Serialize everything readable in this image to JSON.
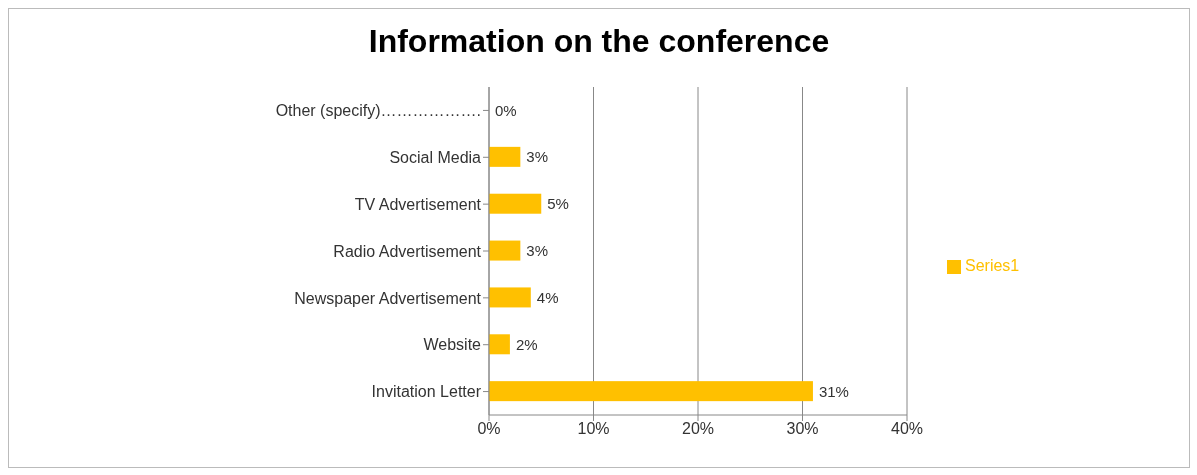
{
  "chart_data": {
    "type": "bar",
    "orientation": "horizontal",
    "title": "Information on the conference",
    "categories": [
      "Other (specify)……………….",
      "Social Media",
      "TV Advertisement",
      "Radio Advertisement",
      "Newspaper Advertisement",
      "Website",
      "Invitation Letter"
    ],
    "series": [
      {
        "name": "Series1",
        "color": "#ffc000",
        "values": [
          0,
          3,
          5,
          3,
          4,
          2,
          31
        ],
        "value_labels": [
          "0%",
          "3%",
          "5%",
          "3%",
          "4%",
          "2%",
          "31%"
        ]
      }
    ],
    "xlim": [
      0,
      40
    ],
    "xticks": [
      {
        "value": 0,
        "label": "0%"
      },
      {
        "value": 10,
        "label": "10%"
      },
      {
        "value": 20,
        "label": "20%"
      },
      {
        "value": 30,
        "label": "30%"
      },
      {
        "value": 40,
        "label": "40%"
      }
    ],
    "grid": "x",
    "legend": "right"
  }
}
